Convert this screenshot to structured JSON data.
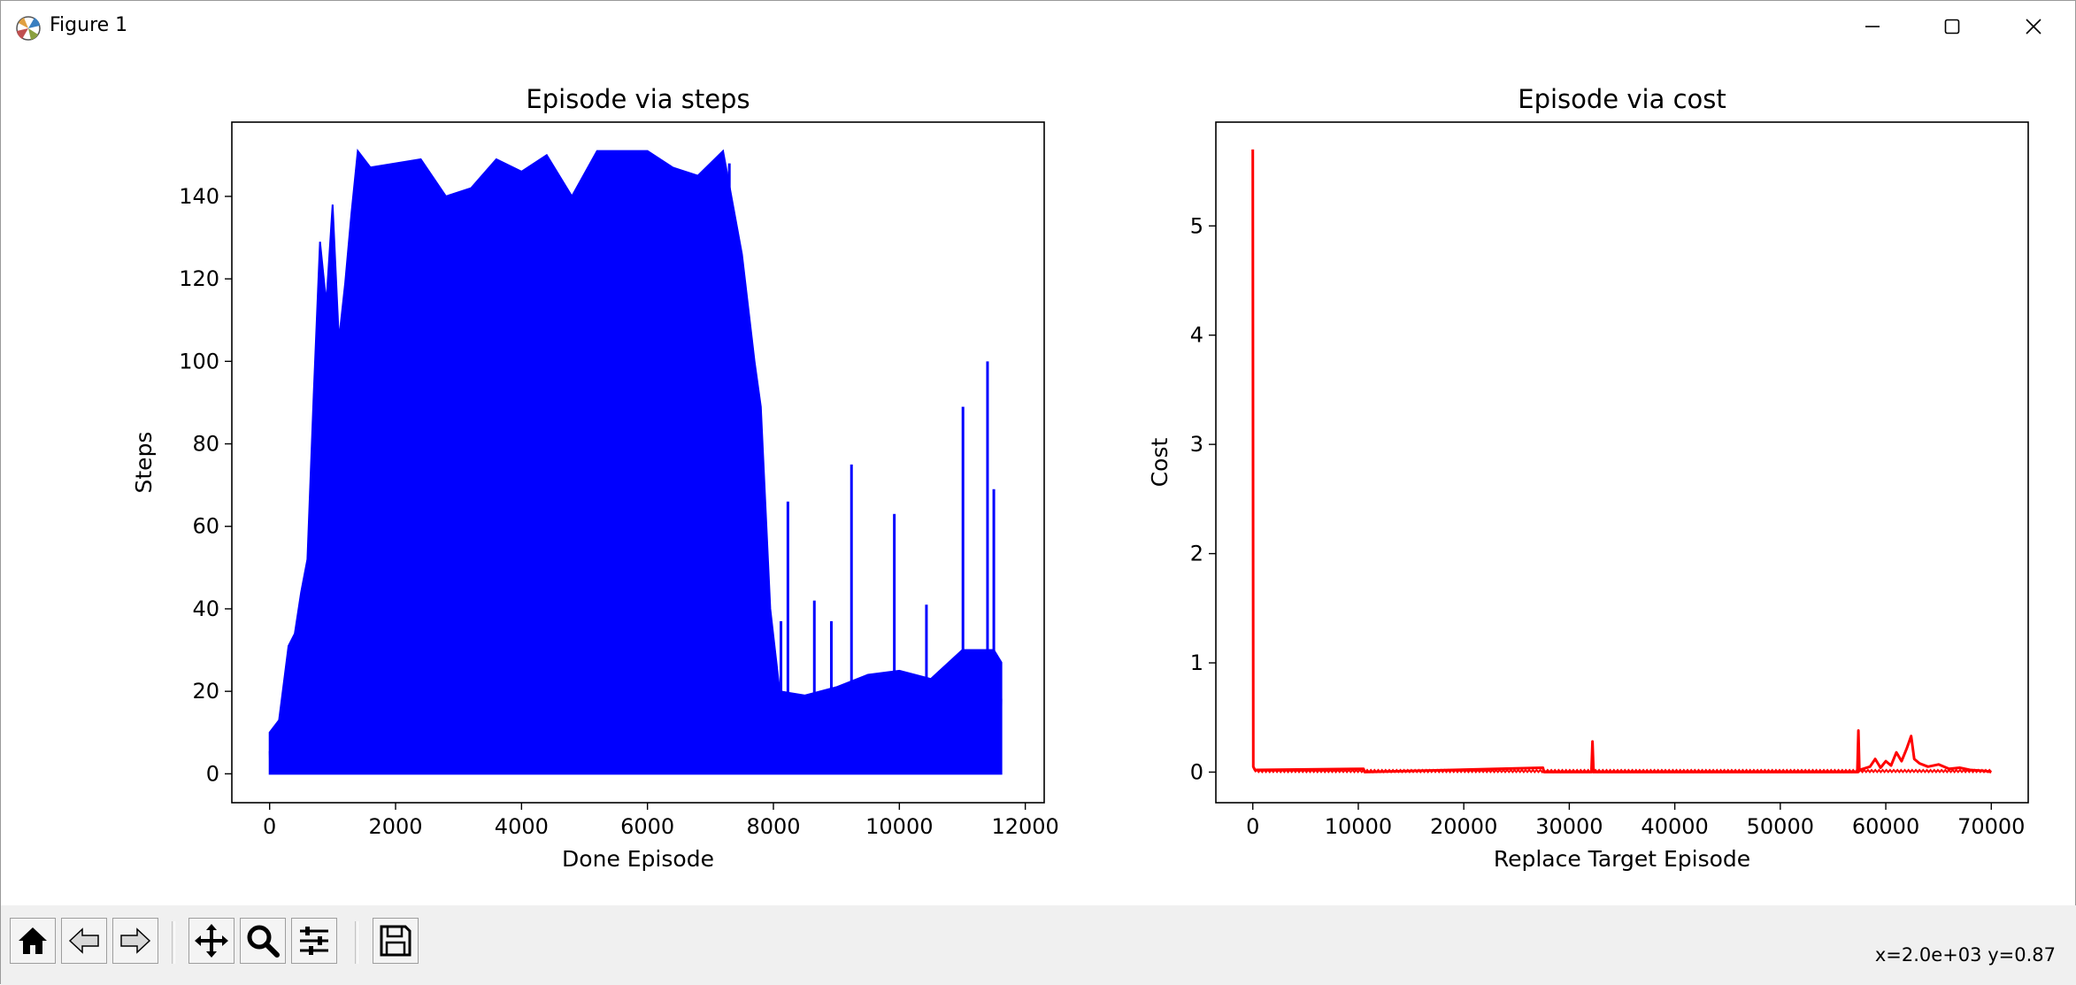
{
  "window": {
    "title": "Figure 1",
    "controls": [
      "minimize",
      "maximize",
      "close"
    ]
  },
  "toolbar": {
    "buttons": [
      {
        "name": "home-icon",
        "label": "Home"
      },
      {
        "name": "back-arrow-icon",
        "label": "Back"
      },
      {
        "name": "forward-arrow-icon",
        "label": "Forward"
      },
      {
        "name": "pan-icon",
        "label": "Pan"
      },
      {
        "name": "zoom-icon",
        "label": "Zoom"
      },
      {
        "name": "configure-subplots-icon",
        "label": "Configure subplots"
      },
      {
        "name": "save-icon",
        "label": "Save"
      }
    ],
    "coordinates": "x=2.0e+03 y=0.87"
  },
  "chart_data": [
    {
      "type": "line",
      "title": "Episode via steps",
      "xlabel": "Done Episode",
      "ylabel": "Steps",
      "xlim": [
        -600,
        12300
      ],
      "ylim": [
        -7,
        158
      ],
      "xticks": [
        "0",
        "2000",
        "4000",
        "6000",
        "8000",
        "10000",
        "12000"
      ],
      "yticks": [
        "0",
        "20",
        "40",
        "60",
        "80",
        "100",
        "120",
        "140"
      ],
      "series": [
        {
          "color": "#0000ff",
          "envelope": {
            "x": [
              0,
              150,
              300,
              400,
              500,
              600,
              700,
              800,
              900,
              1000,
              1100,
              1200,
              1300,
              1400,
              1600,
              2000,
              2400,
              2800,
              3200,
              3600,
              4000,
              4400,
              4800,
              5200,
              5600,
              6000,
              6400,
              6800,
              7200,
              7500,
              7700,
              7800,
              7950,
              8100,
              8500,
              9000,
              9500,
              10000,
              10500,
              11000,
              11500,
              11620
            ],
            "max": [
              10,
              13,
              31,
              34,
              44,
              52,
              92,
              129,
              114,
              138,
              105,
              119,
              136,
              151,
              147,
              148,
              149,
              140,
              142,
              149,
              146,
              150,
              140,
              151,
              151,
              151,
              147,
              145,
              151,
              126,
              100,
              89,
              40,
              20,
              19,
              21,
              24,
              25,
              23,
              30,
              30,
              27
            ],
            "min": [
              0,
              0,
              0,
              0,
              0,
              0,
              0,
              0,
              0,
              0,
              0,
              0,
              0,
              0,
              0,
              0,
              0,
              0,
              0,
              0,
              0,
              0,
              0,
              0,
              0,
              0,
              0,
              0,
              0,
              0,
              0,
              0,
              0,
              0,
              0,
              0,
              0,
              0,
              0,
              0,
              0,
              0
            ]
          },
          "spikes": [
            {
              "x": 8230,
              "y": 66
            },
            {
              "x": 8650,
              "y": 42
            },
            {
              "x": 9240,
              "y": 75
            },
            {
              "x": 9920,
              "y": 63
            },
            {
              "x": 10430,
              "y": 41
            },
            {
              "x": 11010,
              "y": 89
            },
            {
              "x": 11400,
              "y": 100
            },
            {
              "x": 11500,
              "y": 69
            },
            {
              "x": 7300,
              "y": 148
            },
            {
              "x": 8120,
              "y": 37
            },
            {
              "x": 8920,
              "y": 37
            }
          ]
        }
      ]
    },
    {
      "type": "line",
      "title": "Episode via cost",
      "xlabel": "Replace Target Episode",
      "ylabel": "Cost",
      "xlim": [
        -3500,
        73500
      ],
      "ylim": [
        -0.28,
        5.95
      ],
      "xticks": [
        "0",
        "10000",
        "20000",
        "30000",
        "40000",
        "50000",
        "60000",
        "70000"
      ],
      "yticks": [
        "0",
        "1",
        "2",
        "3",
        "4",
        "5"
      ],
      "series": [
        {
          "color": "#ff0000",
          "points": [
            [
              0,
              5.7
            ],
            [
              50,
              0.05
            ],
            [
              200,
              0.02
            ],
            [
              10500,
              0.03
            ],
            [
              10600,
              0.0
            ],
            [
              27500,
              0.04
            ],
            [
              27600,
              0.0
            ],
            [
              32100,
              0.0
            ],
            [
              32200,
              0.28
            ],
            [
              32300,
              0.0
            ],
            [
              57300,
              0.0
            ],
            [
              57400,
              0.38
            ],
            [
              57500,
              0.02
            ],
            [
              58500,
              0.05
            ],
            [
              59000,
              0.12
            ],
            [
              59500,
              0.04
            ],
            [
              60000,
              0.1
            ],
            [
              60500,
              0.06
            ],
            [
              61000,
              0.18
            ],
            [
              61500,
              0.1
            ],
            [
              62000,
              0.22
            ],
            [
              62400,
              0.33
            ],
            [
              62700,
              0.12
            ],
            [
              63200,
              0.08
            ],
            [
              64000,
              0.05
            ],
            [
              65000,
              0.07
            ],
            [
              66000,
              0.03
            ],
            [
              67000,
              0.04
            ],
            [
              68000,
              0.02
            ],
            [
              69500,
              0.01
            ],
            [
              70000,
              0.0
            ]
          ]
        }
      ]
    }
  ],
  "colors": {
    "toolbar_bg": "#f0f0f0",
    "steps_line": "#0000ff",
    "cost_line": "#ff0000"
  }
}
